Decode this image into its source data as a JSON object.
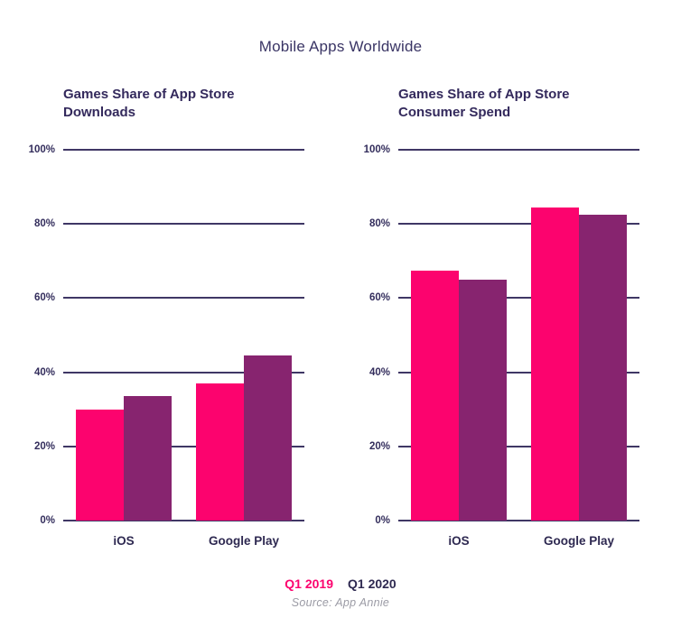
{
  "title": "Mobile Apps Worldwide",
  "source_note": "Source: App Annie",
  "legend": {
    "items": [
      {
        "label": "Q1 2019",
        "color": "#FC036E"
      },
      {
        "label": "Q1 2020",
        "color": "#2E2951"
      }
    ]
  },
  "colors": {
    "q1_2019_bar": "#FC036E",
    "q1_2020_bar": "#87246F",
    "gridline": "#3F3765",
    "heading_text": "#33295C",
    "source_text": "#9B9BA5"
  },
  "chart_data": [
    {
      "type": "bar",
      "title": "Games Share of App Store Downloads",
      "categories": [
        "iOS",
        "Google Play"
      ],
      "series": [
        {
          "name": "Q1 2019",
          "color": "#FC036E",
          "values": [
            30,
            37
          ]
        },
        {
          "name": "Q1 2020",
          "color": "#87246F",
          "values": [
            33.5,
            44.5
          ]
        }
      ],
      "ylim": [
        0,
        100
      ],
      "yticks": [
        "0%",
        "20%",
        "40%",
        "60%",
        "80%",
        "100%"
      ],
      "grid": "horizontal",
      "legend_position": "bottom-center-shared"
    },
    {
      "type": "bar",
      "title": "Games Share of App Store Consumer Spend",
      "categories": [
        "iOS",
        "Google Play"
      ],
      "series": [
        {
          "name": "Q1 2019",
          "color": "#FC036E",
          "values": [
            67.5,
            84.5
          ]
        },
        {
          "name": "Q1 2020",
          "color": "#87246F",
          "values": [
            65,
            82.5
          ]
        }
      ],
      "ylim": [
        0,
        100
      ],
      "yticks": [
        "0%",
        "20%",
        "40%",
        "60%",
        "80%",
        "100%"
      ],
      "grid": "horizontal",
      "legend_position": "bottom-center-shared"
    }
  ]
}
